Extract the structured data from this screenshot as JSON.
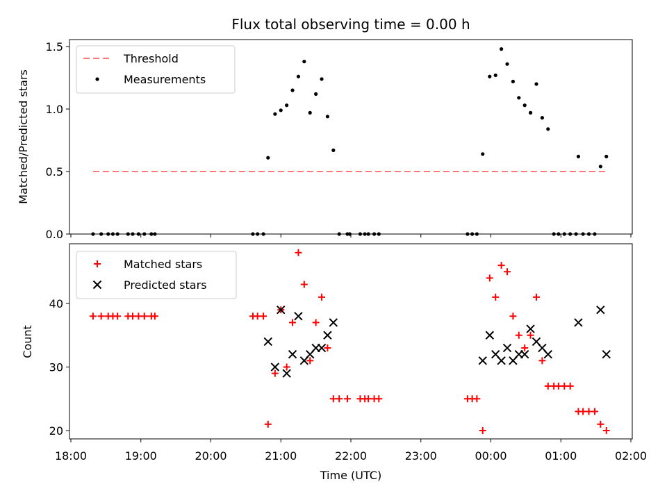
{
  "chart_data": [
    {
      "type": "scatter",
      "title": "Flux total observing time = 0.00 h",
      "xlabel": "",
      "ylabel": "Matched/Predicted stars",
      "x_unit": "time UTC (hours, continuing past midnight)",
      "xlim": [
        "18:00",
        "02:00"
      ],
      "ylim": [
        0,
        1.55
      ],
      "yticks": [
        "0.0",
        "0.5",
        "1.0",
        "1.5"
      ],
      "legend_position": "upper-left",
      "series": [
        {
          "name": "Threshold",
          "kind": "dashed-line",
          "color": "#ff7777",
          "points": [
            [
              "18:19",
              0.5
            ],
            [
              "01:40",
              0.5
            ]
          ]
        },
        {
          "name": "Measurements",
          "kind": "dot",
          "color": "#000000",
          "points": [
            [
              "18:19",
              0
            ],
            [
              "18:26",
              0
            ],
            [
              "18:32",
              0
            ],
            [
              "18:36",
              0
            ],
            [
              "18:40",
              0
            ],
            [
              "18:49",
              0
            ],
            [
              "18:53",
              0
            ],
            [
              "18:58",
              0
            ],
            [
              "19:03",
              0
            ],
            [
              "19:09",
              0
            ],
            [
              "19:12",
              0
            ],
            [
              "20:36",
              0
            ],
            [
              "20:40",
              0
            ],
            [
              "20:45",
              0
            ],
            [
              "20:49",
              0.61
            ],
            [
              "20:55",
              0.96
            ],
            [
              "21:00",
              0.99
            ],
            [
              "21:05",
              1.03
            ],
            [
              "21:10",
              1.15
            ],
            [
              "21:15",
              1.26
            ],
            [
              "21:20",
              1.38
            ],
            [
              "21:25",
              0.97
            ],
            [
              "21:30",
              1.12
            ],
            [
              "21:35",
              1.24
            ],
            [
              "21:40",
              0.94
            ],
            [
              "21:45",
              0.67
            ],
            [
              "21:50",
              0
            ],
            [
              "21:57",
              0
            ],
            [
              "21:59",
              0
            ],
            [
              "22:08",
              0
            ],
            [
              "22:12",
              0
            ],
            [
              "22:15",
              0
            ],
            [
              "22:20",
              0
            ],
            [
              "22:24",
              0
            ],
            [
              "23:40",
              0
            ],
            [
              "23:44",
              0
            ],
            [
              "23:48",
              0
            ],
            [
              "23:53",
              0.64
            ],
            [
              "23:59",
              1.26
            ],
            [
              "00:04",
              1.27
            ],
            [
              "00:09",
              1.48
            ],
            [
              "00:14",
              1.36
            ],
            [
              "00:19",
              1.22
            ],
            [
              "00:24",
              1.09
            ],
            [
              "00:29",
              1.03
            ],
            [
              "00:34",
              0.97
            ],
            [
              "00:39",
              1.2
            ],
            [
              "00:44",
              0.93
            ],
            [
              "00:49",
              0.84
            ],
            [
              "00:54",
              0
            ],
            [
              "00:58",
              0
            ],
            [
              "01:03",
              0
            ],
            [
              "01:08",
              0
            ],
            [
              "01:13",
              0
            ],
            [
              "01:15",
              0.62
            ],
            [
              "01:19",
              0
            ],
            [
              "01:24",
              0
            ],
            [
              "01:29",
              0
            ],
            [
              "01:34",
              0.54
            ],
            [
              "01:39",
              0.62
            ]
          ]
        }
      ]
    },
    {
      "type": "scatter",
      "title": "",
      "xlabel": "Time (UTC)",
      "ylabel": "Count",
      "xlim": [
        "18:00",
        "02:00"
      ],
      "xticks": [
        "18:00",
        "19:00",
        "20:00",
        "21:00",
        "22:00",
        "23:00",
        "00:00",
        "01:00",
        "02:00"
      ],
      "ylim": [
        19,
        49
      ],
      "yticks": [
        "20",
        "30",
        "40"
      ],
      "legend_position": "upper-left",
      "series": [
        {
          "name": "Matched stars",
          "kind": "plus",
          "color": "#ff0000",
          "points": [
            [
              "18:19",
              38
            ],
            [
              "18:26",
              38
            ],
            [
              "18:32",
              38
            ],
            [
              "18:36",
              38
            ],
            [
              "18:40",
              38
            ],
            [
              "18:49",
              38
            ],
            [
              "18:53",
              38
            ],
            [
              "18:58",
              38
            ],
            [
              "19:03",
              38
            ],
            [
              "19:09",
              38
            ],
            [
              "19:12",
              38
            ],
            [
              "20:36",
              38
            ],
            [
              "20:40",
              38
            ],
            [
              "20:45",
              38
            ],
            [
              "20:49",
              21
            ],
            [
              "20:55",
              29
            ],
            [
              "21:00",
              39
            ],
            [
              "21:05",
              30
            ],
            [
              "21:10",
              37
            ],
            [
              "21:15",
              48
            ],
            [
              "21:20",
              43
            ],
            [
              "21:25",
              31
            ],
            [
              "21:30",
              37
            ],
            [
              "21:35",
              41
            ],
            [
              "21:40",
              33
            ],
            [
              "21:45",
              25
            ],
            [
              "21:50",
              25
            ],
            [
              "21:57",
              25
            ],
            [
              "22:08",
              25
            ],
            [
              "22:12",
              25
            ],
            [
              "22:15",
              25
            ],
            [
              "22:20",
              25
            ],
            [
              "22:24",
              25
            ],
            [
              "23:40",
              25
            ],
            [
              "23:44",
              25
            ],
            [
              "23:48",
              25
            ],
            [
              "23:53",
              20
            ],
            [
              "23:59",
              44
            ],
            [
              "00:04",
              41
            ],
            [
              "00:09",
              46
            ],
            [
              "00:14",
              45
            ],
            [
              "00:19",
              38
            ],
            [
              "00:24",
              35
            ],
            [
              "00:29",
              33
            ],
            [
              "00:34",
              35
            ],
            [
              "00:39",
              41
            ],
            [
              "00:44",
              31
            ],
            [
              "00:49",
              27
            ],
            [
              "00:54",
              27
            ],
            [
              "00:58",
              27
            ],
            [
              "01:03",
              27
            ],
            [
              "01:08",
              27
            ],
            [
              "01:15",
              23
            ],
            [
              "01:19",
              23
            ],
            [
              "01:24",
              23
            ],
            [
              "01:29",
              23
            ],
            [
              "01:34",
              21
            ],
            [
              "01:39",
              20
            ]
          ]
        },
        {
          "name": "Predicted stars",
          "kind": "cross",
          "color": "#000000",
          "points": [
            [
              "20:49",
              34
            ],
            [
              "20:55",
              30
            ],
            [
              "21:00",
              39
            ],
            [
              "21:05",
              29
            ],
            [
              "21:10",
              32
            ],
            [
              "21:15",
              38
            ],
            [
              "21:20",
              31
            ],
            [
              "21:25",
              32
            ],
            [
              "21:30",
              33
            ],
            [
              "21:35",
              33
            ],
            [
              "21:40",
              35
            ],
            [
              "21:45",
              37
            ],
            [
              "23:53",
              31
            ],
            [
              "23:59",
              35
            ],
            [
              "00:04",
              32
            ],
            [
              "00:09",
              31
            ],
            [
              "00:14",
              33
            ],
            [
              "00:19",
              31
            ],
            [
              "00:24",
              32
            ],
            [
              "00:29",
              32
            ],
            [
              "00:34",
              36
            ],
            [
              "00:39",
              34
            ],
            [
              "00:44",
              33
            ],
            [
              "00:49",
              32
            ],
            [
              "01:15",
              37
            ],
            [
              "01:34",
              39
            ],
            [
              "01:39",
              32
            ]
          ]
        }
      ]
    }
  ]
}
